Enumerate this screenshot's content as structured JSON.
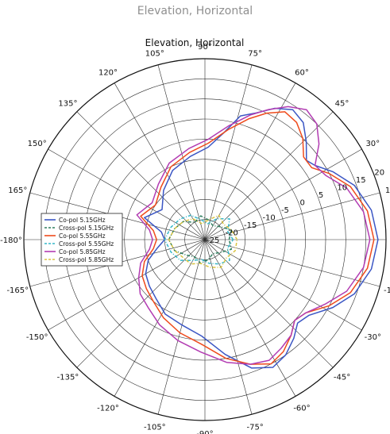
{
  "page": {
    "caption": "Elevation, Horizontal"
  },
  "chart_data": {
    "type": "polar-line",
    "title": "Elevation, Horizontal",
    "angle_unit": "degrees",
    "angle_ticks": [
      0,
      15,
      30,
      45,
      60,
      75,
      90,
      105,
      120,
      135,
      150,
      165,
      180,
      -165,
      -150,
      -135,
      -120,
      -105,
      -90,
      -75,
      -60,
      -45,
      -30,
      -15
    ],
    "angle_tick_labels": [
      "0°",
      "15°",
      "30°",
      "45°",
      "60°",
      "75°",
      "90°",
      "105°",
      "120°",
      "135°",
      "150°",
      "165°",
      "-180°",
      "-165°",
      "-150°",
      "-135°",
      "-120°",
      "-105°",
      "-90°",
      "-75°",
      "-60°",
      "-45°",
      "-30°",
      "-15°"
    ],
    "radial_range": [
      -25,
      20
    ],
    "radial_ticks": [
      -25,
      -20,
      -15,
      -10,
      -5,
      0,
      5,
      10,
      15,
      20
    ],
    "radial_tick_labels": [
      "-25",
      "-20",
      "-15",
      "-10",
      "-5",
      "0",
      "5",
      "10",
      "15",
      "20"
    ],
    "radial_label_angle": 22,
    "grid": true,
    "legend_position": "left",
    "series": [
      {
        "name": "Co-pol 5.15GHz",
        "color": "#3b56c4",
        "style": "solid",
        "points": [
          [
            0,
            18
          ],
          [
            10,
            17
          ],
          [
            20,
            14.5
          ],
          [
            28,
            11
          ],
          [
            34,
            8
          ],
          [
            38,
            7
          ],
          [
            44,
            10
          ],
          [
            50,
            13
          ],
          [
            56,
            14
          ],
          [
            62,
            12
          ],
          [
            68,
            9
          ],
          [
            74,
            7
          ],
          [
            80,
            2
          ],
          [
            88,
            -2
          ],
          [
            100,
            -4
          ],
          [
            115,
            -6
          ],
          [
            130,
            -9
          ],
          [
            145,
            -12
          ],
          [
            160,
            -9
          ],
          [
            170,
            -14
          ],
          [
            180,
            -15
          ],
          [
            -170,
            -13
          ],
          [
            -160,
            -10
          ],
          [
            -150,
            -8
          ],
          [
            -140,
            -7
          ],
          [
            -130,
            -6
          ],
          [
            -118,
            -4
          ],
          [
            -105,
            -3
          ],
          [
            -92,
            -1
          ],
          [
            -80,
            4
          ],
          [
            -70,
            9
          ],
          [
            -62,
            11
          ],
          [
            -55,
            10
          ],
          [
            -48,
            8
          ],
          [
            -42,
            6
          ],
          [
            -36,
            7
          ],
          [
            -28,
            11
          ],
          [
            -20,
            14.5
          ],
          [
            -10,
            17
          ],
          [
            0,
            18
          ]
        ]
      },
      {
        "name": "Cross-pol 5.15GHz",
        "color": "#2f7f5f",
        "style": "dashed",
        "points": [
          [
            0,
            -19
          ],
          [
            20,
            -18
          ],
          [
            40,
            -20
          ],
          [
            60,
            -21
          ],
          [
            80,
            -20
          ],
          [
            100,
            -19
          ],
          [
            120,
            -20
          ],
          [
            140,
            -18
          ],
          [
            160,
            -17
          ],
          [
            180,
            -16
          ],
          [
            -160,
            -17
          ],
          [
            -140,
            -19
          ],
          [
            -120,
            -20
          ],
          [
            -100,
            -19
          ],
          [
            -80,
            -20
          ],
          [
            -60,
            -21
          ],
          [
            -40,
            -20
          ],
          [
            -20,
            -18
          ],
          [
            0,
            -19
          ]
        ]
      },
      {
        "name": "Co-pol 5.55GHz",
        "color": "#ef4b1c",
        "style": "solid",
        "points": [
          [
            0,
            17
          ],
          [
            10,
            16
          ],
          [
            20,
            13.5
          ],
          [
            28,
            10
          ],
          [
            34,
            7
          ],
          [
            40,
            7
          ],
          [
            46,
            10
          ],
          [
            52,
            12
          ],
          [
            58,
            12.5
          ],
          [
            64,
            10
          ],
          [
            70,
            7
          ],
          [
            78,
            3
          ],
          [
            88,
            -1
          ],
          [
            100,
            -3
          ],
          [
            115,
            -5
          ],
          [
            130,
            -8
          ],
          [
            145,
            -10
          ],
          [
            160,
            -8
          ],
          [
            170,
            -12
          ],
          [
            180,
            -13
          ],
          [
            -170,
            -12
          ],
          [
            -160,
            -9
          ],
          [
            -150,
            -7
          ],
          [
            -140,
            -6
          ],
          [
            -130,
            -5
          ],
          [
            -118,
            -3
          ],
          [
            -105,
            -1
          ],
          [
            -92,
            1
          ],
          [
            -80,
            5
          ],
          [
            -70,
            8
          ],
          [
            -62,
            10
          ],
          [
            -55,
            9
          ],
          [
            -48,
            7
          ],
          [
            -42,
            5
          ],
          [
            -36,
            6
          ],
          [
            -28,
            10
          ],
          [
            -20,
            13.5
          ],
          [
            -10,
            16
          ],
          [
            0,
            17
          ]
        ]
      },
      {
        "name": "Cross-pol 5.55GHz",
        "color": "#35b7c9",
        "style": "dashed",
        "points": [
          [
            0,
            -18
          ],
          [
            20,
            -19
          ],
          [
            40,
            -17
          ],
          [
            60,
            -19
          ],
          [
            80,
            -21
          ],
          [
            100,
            -20
          ],
          [
            120,
            -18
          ],
          [
            140,
            -17
          ],
          [
            160,
            -16
          ],
          [
            180,
            -15
          ],
          [
            -160,
            -16
          ],
          [
            -140,
            -17
          ],
          [
            -120,
            -19
          ],
          [
            -100,
            -20
          ],
          [
            -80,
            -19
          ],
          [
            -60,
            -18
          ],
          [
            -40,
            -17
          ],
          [
            -20,
            -19
          ],
          [
            0,
            -18
          ]
        ]
      },
      {
        "name": "Co-pol 5.85GHz",
        "color": "#b23cb2",
        "style": "solid",
        "points": [
          [
            0,
            16
          ],
          [
            10,
            15
          ],
          [
            20,
            12.5
          ],
          [
            28,
            9
          ],
          [
            34,
            8
          ],
          [
            40,
            12
          ],
          [
            46,
            15
          ],
          [
            52,
            16
          ],
          [
            58,
            14
          ],
          [
            64,
            11
          ],
          [
            70,
            8
          ],
          [
            78,
            4
          ],
          [
            88,
            0
          ],
          [
            100,
            -2
          ],
          [
            115,
            -4
          ],
          [
            130,
            -7
          ],
          [
            145,
            -9
          ],
          [
            160,
            -7
          ],
          [
            170,
            -11
          ],
          [
            180,
            -12
          ],
          [
            -170,
            -11
          ],
          [
            -160,
            -8
          ],
          [
            -150,
            -6
          ],
          [
            -140,
            -4
          ],
          [
            -130,
            -3
          ],
          [
            -118,
            -1
          ],
          [
            -105,
            1
          ],
          [
            -92,
            3
          ],
          [
            -80,
            6
          ],
          [
            -70,
            8
          ],
          [
            -62,
            9
          ],
          [
            -55,
            8
          ],
          [
            -48,
            7
          ],
          [
            -42,
            5
          ],
          [
            -36,
            6
          ],
          [
            -28,
            9
          ],
          [
            -20,
            12.5
          ],
          [
            -10,
            15
          ],
          [
            0,
            16
          ]
        ]
      },
      {
        "name": "Cross-pol 5.85GHz",
        "color": "#d9c441",
        "style": "dashed",
        "points": [
          [
            0,
            -17
          ],
          [
            20,
            -18
          ],
          [
            40,
            -19
          ],
          [
            60,
            -18
          ],
          [
            80,
            -20
          ],
          [
            100,
            -21
          ],
          [
            120,
            -19
          ],
          [
            140,
            -18
          ],
          [
            160,
            -17
          ],
          [
            180,
            -16
          ],
          [
            -160,
            -17
          ],
          [
            -140,
            -18
          ],
          [
            -120,
            -18
          ],
          [
            -100,
            -19
          ],
          [
            -80,
            -18
          ],
          [
            -60,
            -17
          ],
          [
            -40,
            -18
          ],
          [
            -20,
            -17
          ],
          [
            0,
            -17
          ]
        ]
      }
    ]
  }
}
